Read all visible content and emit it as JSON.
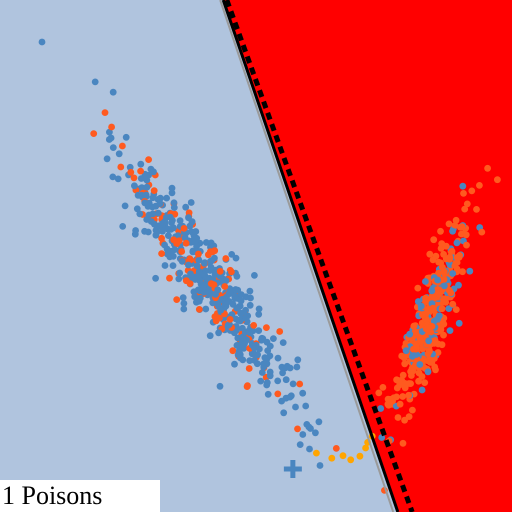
{
  "chart_data": {
    "type": "scatter",
    "title": "",
    "xlabel": "",
    "ylabel": "",
    "xlim": [
      0,
      100
    ],
    "ylim": [
      0,
      100
    ],
    "grid": false,
    "legend": "none",
    "annotation": "1 Poisons",
    "colors": {
      "region_left": "#b0c4de",
      "region_right": "#ff0000",
      "class_blue": "#4a86c0",
      "class_orange": "#ff5a1f",
      "poison_points": "#ffa500",
      "boundary_solid": "#000000",
      "boundary_dashed": "#000000",
      "boundary_gray": "#9a9a9a",
      "poison_marker": "#4a86c0"
    },
    "boundaries": [
      {
        "style": "solid",
        "from": [
          43.6,
          100
        ],
        "to": [
          77.7,
          0
        ]
      },
      {
        "style": "dashed",
        "from": [
          44.3,
          100
        ],
        "to": [
          80.5,
          0
        ]
      },
      {
        "style": "gray",
        "from": [
          43.0,
          100
        ],
        "to": [
          76.8,
          0
        ]
      }
    ],
    "clusters": [
      {
        "class": "blue",
        "cx": 40,
        "cy": 46,
        "axis_angle_deg": -56,
        "len_sd": 14.5,
        "wid_sd": 2.6,
        "n": 520,
        "orange_fraction": 0.22
      },
      {
        "class": "orange",
        "cx": 84,
        "cy": 38,
        "axis_angle_deg": 71,
        "len_sd": 10.5,
        "wid_sd": 1.7,
        "n": 400,
        "blue_fraction": 0.25
      }
    ],
    "outliers": [
      {
        "x": 8.2,
        "y": 91.8,
        "class": "blue"
      },
      {
        "x": 18.6,
        "y": 84.0,
        "class": "blue"
      },
      {
        "x": 22.1,
        "y": 82.0,
        "class": "blue"
      },
      {
        "x": 20.5,
        "y": 78.0,
        "class": "orange"
      },
      {
        "x": 21.8,
        "y": 75.2,
        "class": "orange"
      }
    ],
    "poison_points": [
      {
        "x": 61.8,
        "y": 11.5
      },
      {
        "x": 64.8,
        "y": 10.5
      },
      {
        "x": 67.0,
        "y": 11.0
      },
      {
        "x": 68.5,
        "y": 10.2
      },
      {
        "x": 70.3,
        "y": 10.9
      },
      {
        "x": 71.4,
        "y": 12.5
      },
      {
        "x": 71.8,
        "y": 13.6
      },
      {
        "x": 72.7,
        "y": 14.8
      }
    ],
    "poison_marker": {
      "x": 57.2,
      "y": 8.4,
      "shape": "plus"
    }
  }
}
